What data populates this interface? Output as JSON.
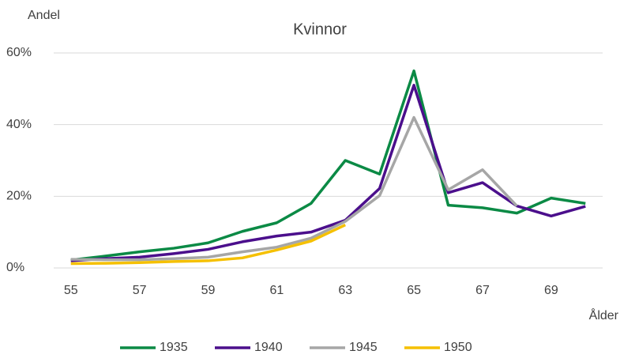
{
  "chart_data": {
    "type": "line",
    "title": "Kvinnor",
    "y_label": "Andel",
    "x_label": "Ålder",
    "categories": [
      "55",
      null,
      "57",
      null,
      "59",
      null,
      "61",
      null,
      "63",
      null,
      "65",
      null,
      "67",
      null,
      "69",
      null
    ],
    "series": [
      {
        "name": "1935",
        "color": "#0b8a45",
        "values": [
          2.2,
          3.3,
          4.5,
          5.5,
          7,
          10.2,
          12.6,
          18,
          30,
          26.2,
          55,
          17.5,
          16.8,
          15.3,
          19.5,
          18
        ]
      },
      {
        "name": "1940",
        "color": "#4b0f8c",
        "values": [
          2,
          2.6,
          3,
          4,
          5.2,
          7.3,
          8.9,
          10,
          13.3,
          22.2,
          51,
          21,
          23.8,
          17.3,
          14.5,
          17.2
        ]
      },
      {
        "name": "1945",
        "color": "#a6a6a6",
        "values": [
          2.4,
          2.3,
          2.3,
          2.6,
          3,
          4.5,
          5.8,
          8.3,
          13,
          20.2,
          42,
          21.8,
          27.4,
          17.3,
          null,
          null
        ]
      },
      {
        "name": "1950",
        "color": "#f5c000",
        "values": [
          1.2,
          1.3,
          1.5,
          1.8,
          2,
          2.8,
          5,
          7.5,
          12,
          null,
          null,
          null,
          null,
          null,
          null,
          null
        ]
      }
    ],
    "ylim": [
      0,
      60
    ],
    "yticks": [
      {
        "value": 0,
        "label": "0%"
      },
      {
        "value": 20,
        "label": "20%"
      },
      {
        "value": 40,
        "label": "40%"
      },
      {
        "value": 60,
        "label": "60%"
      }
    ],
    "grid": true,
    "legend": "bottom"
  }
}
